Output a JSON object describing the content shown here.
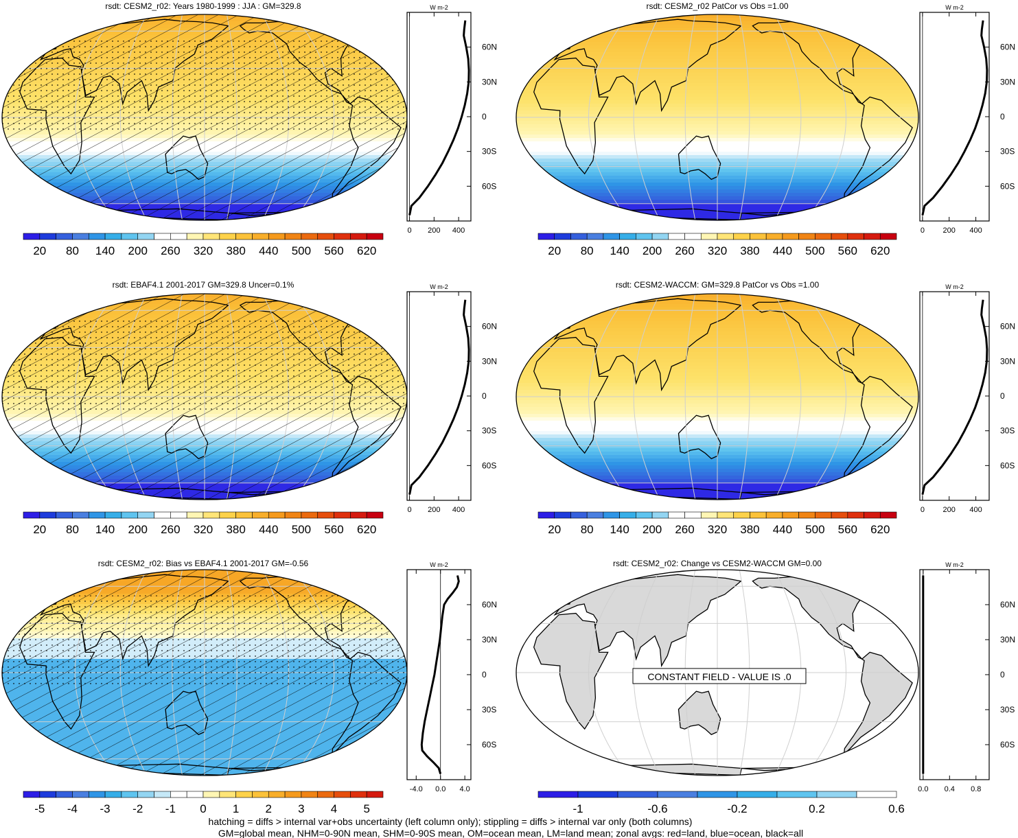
{
  "figure": {
    "footer_lines": [
      "hatching = diffs > internal var+obs uncertainty (left column only); stippling = diffs > internal var only (both columns)",
      "GM=global mean, NHM=0-90N mean, SHM=0-90S mean, OM=ocean mean, LM=land mean; zonal avgs: red=land, blue=ocean, black=all"
    ]
  },
  "chart_data": [
    {
      "type": "heatmap",
      "title": "rsdt: CESM2_r02: Years 1980-1999 : JJA : GM=329.8",
      "field": "insolation",
      "overlay": "hatch",
      "colorbar": {
        "tick_labels": [
          "20",
          "80",
          "140",
          "200",
          "260",
          "320",
          "380",
          "440",
          "500",
          "560",
          "620"
        ],
        "colors": [
          "#2d1ee6",
          "#1e3cdc",
          "#3560dd",
          "#4a7fe0",
          "#2f95e6",
          "#36aee8",
          "#5fc4ef",
          "#93d5f2",
          "#ffffff",
          "#ffffff",
          "#fff6b4",
          "#ffe578",
          "#fdd24a",
          "#fbc23a",
          "#f8ae2a",
          "#f59a1c",
          "#f08414",
          "#eb6a0f",
          "#e64e0c",
          "#df300d",
          "#d51a0f",
          "#c80010"
        ]
      },
      "zonal": {
        "unit": "W m-2",
        "lat_ticks": [
          "60N",
          "30N",
          "0",
          "30S",
          "60S"
        ],
        "x_ticks": [
          "0",
          "200",
          "400"
        ],
        "xlim": [
          -20,
          500
        ],
        "lat": [
          83,
          75,
          70,
          60,
          50,
          40,
          30,
          20,
          10,
          0,
          -10,
          -20,
          -30,
          -40,
          -50,
          -60,
          -70,
          -77,
          -85
        ],
        "value": [
          454,
          445,
          442,
          462,
          478,
          484,
          482,
          470,
          450,
          425,
          395,
          358,
          315,
          268,
          212,
          150,
          80,
          15,
          0
        ]
      }
    },
    {
      "type": "heatmap",
      "title": "rsdt: CESM2_r02 PatCor vs Obs =1.00",
      "field": "insolation",
      "overlay": "none",
      "colorbar": {
        "tick_labels": [
          "20",
          "80",
          "140",
          "200",
          "260",
          "320",
          "380",
          "440",
          "500",
          "560",
          "620"
        ],
        "colors": [
          "#2d1ee6",
          "#1e3cdc",
          "#3560dd",
          "#4a7fe0",
          "#2f95e6",
          "#36aee8",
          "#5fc4ef",
          "#93d5f2",
          "#ffffff",
          "#ffffff",
          "#fff6b4",
          "#ffe578",
          "#fdd24a",
          "#fbc23a",
          "#f8ae2a",
          "#f59a1c",
          "#f08414",
          "#eb6a0f",
          "#e64e0c",
          "#df300d",
          "#d51a0f",
          "#c80010"
        ]
      },
      "zonal": {
        "unit": "W m-2",
        "lat_ticks": [
          "60N",
          "30N",
          "0",
          "30S",
          "60S"
        ],
        "x_ticks": [
          "0",
          "200",
          "400"
        ],
        "xlim": [
          -20,
          500
        ],
        "lat": [
          83,
          75,
          70,
          60,
          50,
          40,
          30,
          20,
          10,
          0,
          -10,
          -20,
          -30,
          -40,
          -50,
          -60,
          -70,
          -77,
          -85
        ],
        "value": [
          454,
          445,
          442,
          462,
          478,
          484,
          482,
          470,
          450,
          425,
          395,
          358,
          315,
          268,
          212,
          150,
          80,
          15,
          0
        ]
      }
    },
    {
      "type": "heatmap",
      "title": "rsdt: EBAF4.1 2001-2017 GM=329.8 Uncer=0.1%",
      "field": "insolation",
      "overlay": "hatch",
      "colorbar": {
        "tick_labels": [
          "20",
          "80",
          "140",
          "200",
          "260",
          "320",
          "380",
          "440",
          "500",
          "560",
          "620"
        ],
        "colors": [
          "#2d1ee6",
          "#1e3cdc",
          "#3560dd",
          "#4a7fe0",
          "#2f95e6",
          "#36aee8",
          "#5fc4ef",
          "#93d5f2",
          "#ffffff",
          "#ffffff",
          "#fff6b4",
          "#ffe578",
          "#fdd24a",
          "#fbc23a",
          "#f8ae2a",
          "#f59a1c",
          "#f08414",
          "#eb6a0f",
          "#e64e0c",
          "#df300d",
          "#d51a0f",
          "#c80010"
        ]
      },
      "zonal": {
        "unit": "W m-2",
        "lat_ticks": [
          "60N",
          "30N",
          "0",
          "30S",
          "60S"
        ],
        "x_ticks": [
          "0",
          "200",
          "400"
        ],
        "xlim": [
          -20,
          500
        ],
        "lat": [
          83,
          75,
          70,
          60,
          50,
          40,
          30,
          20,
          10,
          0,
          -10,
          -20,
          -30,
          -40,
          -50,
          -60,
          -70,
          -77,
          -85
        ],
        "value": [
          454,
          445,
          442,
          462,
          478,
          484,
          482,
          470,
          450,
          425,
          395,
          358,
          315,
          268,
          212,
          150,
          80,
          15,
          0
        ]
      }
    },
    {
      "type": "heatmap",
      "title": "rsdt: CESM2-WACCM: GM=329.8 PatCor vs Obs =1.00",
      "field": "insolation",
      "overlay": "none",
      "colorbar": {
        "tick_labels": [
          "20",
          "80",
          "140",
          "200",
          "260",
          "320",
          "380",
          "440",
          "500",
          "560",
          "620"
        ],
        "colors": [
          "#2d1ee6",
          "#1e3cdc",
          "#3560dd",
          "#4a7fe0",
          "#2f95e6",
          "#36aee8",
          "#5fc4ef",
          "#93d5f2",
          "#ffffff",
          "#ffffff",
          "#fff6b4",
          "#ffe578",
          "#fdd24a",
          "#fbc23a",
          "#f8ae2a",
          "#f59a1c",
          "#f08414",
          "#eb6a0f",
          "#e64e0c",
          "#df300d",
          "#d51a0f",
          "#c80010"
        ]
      },
      "zonal": {
        "unit": "W m-2",
        "lat_ticks": [
          "60N",
          "30N",
          "0",
          "30S",
          "60S"
        ],
        "x_ticks": [
          "0",
          "200",
          "400"
        ],
        "xlim": [
          -20,
          500
        ],
        "lat": [
          83,
          75,
          70,
          60,
          50,
          40,
          30,
          20,
          10,
          0,
          -10,
          -20,
          -30,
          -40,
          -50,
          -60,
          -70,
          -77,
          -85
        ],
        "value": [
          454,
          445,
          442,
          462,
          478,
          484,
          482,
          470,
          450,
          425,
          395,
          358,
          315,
          268,
          212,
          150,
          80,
          15,
          0
        ]
      }
    },
    {
      "type": "heatmap",
      "title": "rsdt: CESM2_r02: Bias vs EBAF4.1 2001-2017 GM=-0.56",
      "field": "bias",
      "overlay": "hatch",
      "colorbar": {
        "tick_labels": [
          "-5",
          "-4",
          "-3",
          "-2",
          "-1",
          "0",
          "1",
          "2",
          "3",
          "4",
          "5"
        ],
        "colors": [
          "#2d1ee6",
          "#1e3cdc",
          "#3560dd",
          "#4a7fe0",
          "#2f95e6",
          "#36aee8",
          "#5fc4ef",
          "#93d5f2",
          "#c5e8f7",
          "#ffffff",
          "#ffffff",
          "#fff6b4",
          "#ffe578",
          "#fdd24a",
          "#fbc23a",
          "#f8ae2a",
          "#f59a1c",
          "#f08414",
          "#eb6a0f",
          "#e64e0c",
          "#df300d",
          "#d51a0f"
        ]
      },
      "zonal": {
        "unit": "W m-2",
        "lat_ticks": [
          "60N",
          "30N",
          "0",
          "30S",
          "60S"
        ],
        "x_ticks": [
          "-4.0",
          "0.0",
          "4.0"
        ],
        "xlim": [
          -5.5,
          5
        ],
        "lat": [
          85,
          80,
          75,
          70,
          65,
          60,
          50,
          40,
          30,
          20,
          10,
          0,
          -10,
          -20,
          -30,
          -40,
          -50,
          -60,
          -65,
          -70,
          -75,
          -80,
          -85
        ],
        "value": [
          2.8,
          3.0,
          2.7,
          2.0,
          1.2,
          0.6,
          0.3,
          0.1,
          -0.1,
          -0.4,
          -0.7,
          -1.0,
          -1.4,
          -1.8,
          -2.2,
          -2.6,
          -2.9,
          -3.1,
          -3.0,
          -2.2,
          -1.2,
          -0.3,
          0.0
        ]
      }
    },
    {
      "type": "heatmap",
      "title": "rsdt: CESM2_r02: Change vs CESM2-WACCM GM=0.00",
      "field": "constant",
      "overlay": "none",
      "annotation": "CONSTANT FIELD - VALUE IS .0",
      "colorbar": {
        "tick_labels": [
          "-1",
          "-0.6",
          "-0.2",
          "0.2",
          "0.6"
        ],
        "colors": [
          "#2d1ee6",
          "#1e3cdc",
          "#3560dd",
          "#4a7fe0",
          "#2f95e6",
          "#36aee8",
          "#5fc4ef",
          "#93d5f2",
          "#ffffff"
        ]
      },
      "zonal": {
        "unit": "W m-2",
        "lat_ticks": [
          "60N",
          "30N",
          "0",
          "30S",
          "60S"
        ],
        "x_ticks": [
          "0.0",
          "0.4",
          "0.8"
        ],
        "xlim": [
          -0.05,
          1.0
        ],
        "lat": [
          85,
          -85
        ],
        "value": [
          0,
          0
        ]
      }
    }
  ]
}
